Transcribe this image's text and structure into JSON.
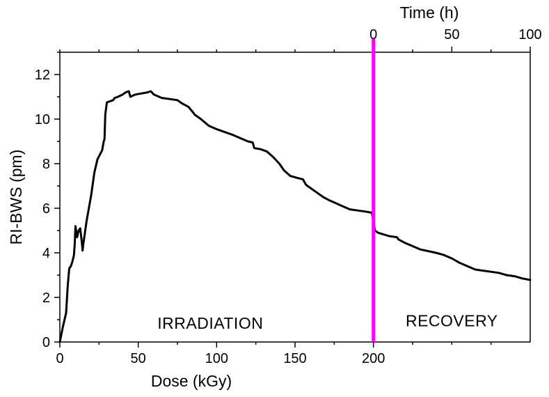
{
  "chart_data": {
    "type": "line",
    "ylabel": "RI-BWS (pm)",
    "xlabel": "Dose (kGy)",
    "x2label": "Time (h)",
    "xlim": [
      0,
      300
    ],
    "ylim": [
      0,
      13
    ],
    "bottom_ticks": [
      {
        "value": 0,
        "label": "0"
      },
      {
        "value": 50,
        "label": "50"
      },
      {
        "value": 100,
        "label": "100"
      },
      {
        "value": 150,
        "label": "150"
      },
      {
        "value": 200,
        "label": "200"
      }
    ],
    "bottom_minor_ticks": [
      25,
      75,
      125,
      175,
      225,
      250,
      275
    ],
    "top_ticks": [
      {
        "value": 0,
        "label": "0"
      },
      {
        "value": 50,
        "label": "50"
      },
      {
        "value": 100,
        "label": "100"
      }
    ],
    "top_minor_ticks": [
      -200,
      -175,
      -150,
      -125,
      -100,
      -75,
      -50,
      -25,
      25,
      75
    ],
    "top_axis_origin": 200,
    "y_ticks": [
      {
        "value": 0,
        "label": "0"
      },
      {
        "value": 2,
        "label": "2"
      },
      {
        "value": 4,
        "label": "4"
      },
      {
        "value": 6,
        "label": "6"
      },
      {
        "value": 8,
        "label": "8"
      },
      {
        "value": 10,
        "label": "10"
      },
      {
        "value": 12,
        "label": "12"
      }
    ],
    "y_minor_ticks": [
      1,
      3,
      5,
      7,
      9,
      11,
      13
    ],
    "marker_x": 200,
    "marker_color": "#ff00ff",
    "line_color": "#000000",
    "regions": [
      {
        "label": "IRRADIATION",
        "x": 96,
        "y": 0.6
      },
      {
        "label": "RECOVERY",
        "x": 250,
        "y": 0.7
      }
    ],
    "series": [
      {
        "name": "RI-BWS",
        "x": [
          0,
          2,
          4,
          5,
          6,
          7,
          8,
          9,
          9.5,
          10,
          11,
          12,
          13,
          14,
          14.5,
          15,
          17,
          20,
          22,
          24,
          27,
          28,
          28.5,
          29,
          30,
          34,
          35,
          37,
          40,
          42,
          44,
          45,
          48,
          52,
          56,
          58,
          60,
          65,
          70,
          75,
          78,
          82,
          85,
          86,
          90,
          95,
          100,
          110,
          115,
          120,
          123,
          124,
          128,
          132,
          136,
          140,
          143,
          147,
          152,
          155,
          157,
          160,
          166,
          168,
          172,
          177,
          180,
          185,
          190,
          195,
          199,
          200,
          201,
          203,
          210,
          215,
          216,
          220,
          225,
          230,
          240,
          245,
          250,
          255,
          260,
          265,
          270,
          275,
          280,
          285,
          290,
          295,
          300
        ],
        "y": [
          0,
          0.7,
          1.3,
          2.5,
          3.3,
          3.4,
          3.6,
          3.9,
          4.4,
          5.2,
          4.7,
          5.0,
          5.1,
          4.5,
          4.1,
          4.4,
          5.4,
          6.6,
          7.6,
          8.2,
          8.6,
          9.0,
          9.1,
          10.2,
          10.75,
          10.85,
          10.95,
          11.0,
          11.1,
          11.2,
          11.25,
          11.0,
          11.1,
          11.15,
          11.2,
          11.25,
          11.1,
          10.95,
          10.9,
          10.85,
          10.7,
          10.55,
          10.3,
          10.2,
          10.0,
          9.7,
          9.55,
          9.3,
          9.15,
          9.0,
          8.95,
          8.7,
          8.65,
          8.55,
          8.3,
          8.0,
          7.7,
          7.45,
          7.35,
          7.3,
          7.05,
          6.9,
          6.6,
          6.5,
          6.35,
          6.2,
          6.1,
          5.95,
          5.9,
          5.85,
          5.8,
          5.4,
          5.0,
          4.9,
          4.75,
          4.7,
          4.6,
          4.45,
          4.3,
          4.15,
          4.0,
          3.9,
          3.75,
          3.55,
          3.4,
          3.25,
          3.2,
          3.15,
          3.1,
          3.0,
          2.95,
          2.85,
          2.78
        ]
      }
    ]
  }
}
